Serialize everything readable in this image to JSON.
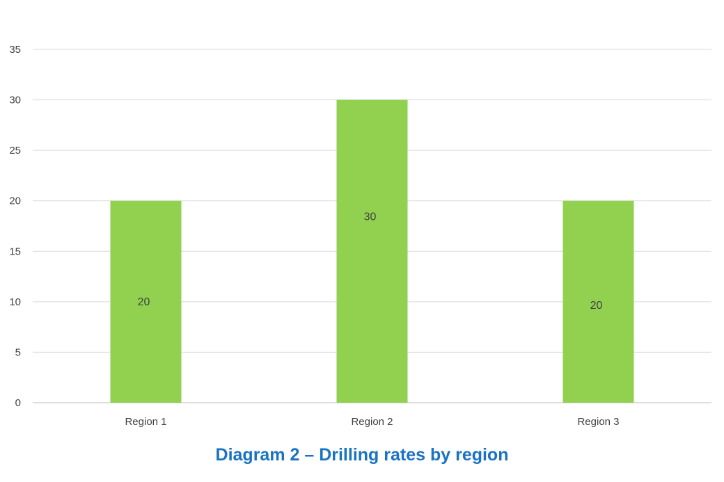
{
  "chart_data": {
    "type": "bar",
    "categories": [
      "Region 1",
      "Region 2",
      "Region 3"
    ],
    "values": [
      20,
      30,
      20
    ],
    "data_labels": [
      "20",
      "30",
      "20"
    ],
    "ylim": [
      0,
      35
    ],
    "y_ticks": [
      0,
      5,
      10,
      15,
      20,
      25,
      30,
      35
    ],
    "grid": true,
    "legend": "none",
    "bar_color": "#92d050"
  },
  "caption": "Diagram 2 – Drilling rates by region"
}
